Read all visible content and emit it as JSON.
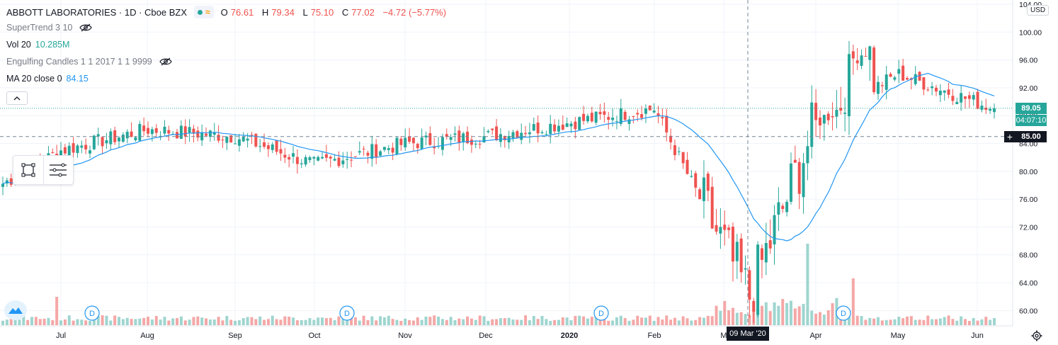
{
  "header": {
    "symbol": "ABBOTT LABORATORIES · 1D · Cboe BZX",
    "ohlc": [
      {
        "k": "O",
        "v": "76.61"
      },
      {
        "k": "H",
        "v": "79.34"
      },
      {
        "k": "L",
        "v": "75.10"
      },
      {
        "k": "C",
        "v": "77.02"
      },
      {
        "k": "",
        "v": "−4.72 (−5.77%)"
      }
    ]
  },
  "indicators": {
    "supertrend": {
      "label": "SuperTrend 3 10",
      "icon": "eye-crossed-icon"
    },
    "volume": {
      "label": "Vol 20",
      "value": "10.285M"
    },
    "engulfing": {
      "label": "Engulfing Candles 1 1 2017 1 1 9999",
      "icon": "eye-crossed-icon"
    },
    "ma": {
      "label": "MA 20 close 0",
      "value": "84.15"
    }
  },
  "price_axis": {
    "currency": "USD",
    "ticks": [
      "60.00",
      "64.00",
      "68.00",
      "72.00",
      "76.00",
      "80.00",
      "84.00",
      "88.00",
      "92.00",
      "96.00",
      "100.00",
      "104.00"
    ],
    "last_price_tag": "89.05",
    "countdown_tag": "04:07:10",
    "crosshair_price_tag": "85.00"
  },
  "time_axis": {
    "labels": [
      "Jul",
      "Aug",
      "Sep",
      "Oct",
      "Nov",
      "Dec",
      "2020",
      "Feb",
      "M",
      "Apr",
      "May",
      "Jun"
    ],
    "crosshair_date": "09 Mar '20",
    "dividend_marker": "D"
  },
  "colors": {
    "up": "#26a69a",
    "down": "#ef5350",
    "ma": "#2196f3",
    "volume_up": "#9fd5cf",
    "volume_down": "#f4a7a6",
    "axis_tag_dark": "#131722"
  },
  "chart_data": {
    "type": "candlestick",
    "y_range": [
      58,
      104
    ],
    "last_close": 89.05,
    "crosshair_price": 85.0,
    "key_points": [
      {
        "date": "Jul",
        "close": 83
      },
      {
        "date": "Aug",
        "close": 86
      },
      {
        "date": "Sep",
        "close": 85
      },
      {
        "date": "Oct",
        "close": 81
      },
      {
        "date": "Nov",
        "close": 84
      },
      {
        "date": "Dec",
        "close": 85
      },
      {
        "date": "2020",
        "close": 87
      },
      {
        "date": "Feb",
        "close": 89
      },
      {
        "date": "Mar",
        "close": 62
      },
      {
        "date": "Apr",
        "close": 87
      },
      {
        "date": "May",
        "close": 94
      },
      {
        "date": "Jun",
        "close": 89
      }
    ]
  }
}
